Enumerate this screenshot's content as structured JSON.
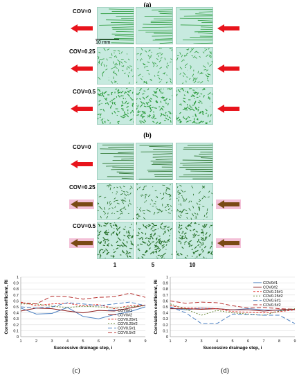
{
  "figure": {
    "panel_labels": [
      "(a)",
      "(b)",
      "(c)",
      "(d)"
    ],
    "cov_labels": [
      "COV=0",
      "COV=0.25",
      "COV=0.5"
    ],
    "step_labels": [
      "1",
      "5",
      "10"
    ],
    "scale_label": "10 mm",
    "colors": {
      "tile_bg": "#c7eadf",
      "finger": "#2a9a3a",
      "finger_dark": "#1e6a20",
      "arrow_red": "#e8141c",
      "arrow_brown": "#7a4a14",
      "arrow_glow": "#f3c1d8"
    },
    "arrows_b_brown": [
      false,
      true,
      true
    ]
  },
  "chart_data": [
    {
      "type": "line",
      "panel": "(c)",
      "ylabel": "Correlation coefficient, Ri",
      "xlabel": "Successive drainage step, i",
      "xlim": [
        1,
        9
      ],
      "ylim": [
        0,
        1
      ],
      "x": [
        1,
        2,
        3,
        4,
        5,
        6,
        7,
        8,
        9
      ],
      "x_ticks": [
        "1",
        "2",
        "3",
        "4",
        "5",
        "6",
        "7",
        "8",
        "9"
      ],
      "y_ticks": [
        "0",
        "0.1",
        "0.2",
        "0.3",
        "0.4",
        "0.5",
        "0.6",
        "0.7",
        "0.8",
        "0.9",
        "1"
      ],
      "legend_position": "bottom-right",
      "series": [
        {
          "name": "COV0#1",
          "color": "#4a7fc1",
          "dash": "",
          "values": [
            0.48,
            0.38,
            0.39,
            0.49,
            0.34,
            0.3,
            0.37,
            0.42,
            0.5
          ]
        },
        {
          "name": "COV0#2",
          "color": "#8b1a1a",
          "dash": "",
          "values": [
            0.43,
            0.48,
            0.47,
            0.43,
            0.4,
            0.44,
            0.43,
            0.48,
            0.53
          ]
        },
        {
          "name": "COV0.25#1",
          "color": "#e0302a",
          "dash": "3,2",
          "values": [
            0.58,
            0.52,
            0.55,
            0.56,
            0.52,
            0.54,
            0.47,
            0.52,
            0.53
          ]
        },
        {
          "name": "COV0.25#2",
          "color": "#6a8a3a",
          "dash": "2,2",
          "values": [
            0.55,
            0.55,
            0.51,
            0.49,
            0.51,
            0.5,
            0.48,
            0.5,
            0.52
          ]
        },
        {
          "name": "COV0.5#1",
          "color": "#4a7fc1",
          "dash": "6,3",
          "values": [
            0.5,
            0.48,
            0.5,
            0.57,
            0.55,
            0.52,
            0.55,
            0.58,
            0.52
          ]
        },
        {
          "name": "COV0.5#2",
          "color": "#b8312f",
          "dash": "6,3",
          "values": [
            0.57,
            0.55,
            0.68,
            0.67,
            0.63,
            0.66,
            0.67,
            0.73,
            0.66
          ]
        }
      ]
    },
    {
      "type": "line",
      "panel": "(d)",
      "ylabel": "Correlation coefficient, Ri",
      "xlabel": "Successive drainage step, i",
      "xlim": [
        1,
        9
      ],
      "ylim": [
        0,
        1
      ],
      "x": [
        1,
        2,
        3,
        4,
        5,
        6,
        7,
        8,
        9
      ],
      "x_ticks": [
        "1",
        "2",
        "3",
        "4",
        "5",
        "6",
        "7",
        "8",
        "9"
      ],
      "y_ticks": [
        "0",
        "0.1",
        "0.2",
        "0.3",
        "0.4",
        "0.5",
        "0.6",
        "0.7",
        "0.8",
        "0.9",
        "1"
      ],
      "legend_position": "top-right",
      "series": [
        {
          "name": "COV0#1",
          "color": "#4a7fc1",
          "dash": "",
          "values": [
            0.48,
            0.45,
            0.48,
            0.47,
            0.45,
            0.47,
            0.45,
            0.44,
            0.45
          ]
        },
        {
          "name": "COV0#2",
          "color": "#8b1a1a",
          "dash": "",
          "values": [
            0.47,
            0.47,
            0.46,
            0.47,
            0.45,
            0.45,
            0.43,
            0.45,
            0.46
          ]
        },
        {
          "name": "COV0.25#1",
          "color": "#e0302a",
          "dash": "3,2",
          "values": [
            0.52,
            0.48,
            0.48,
            0.47,
            0.42,
            0.41,
            0.4,
            0.42,
            0.45
          ]
        },
        {
          "name": "COV0.25#2",
          "color": "#6a8a3a",
          "dash": "2,2",
          "values": [
            0.55,
            0.46,
            0.36,
            0.44,
            0.4,
            0.38,
            0.36,
            0.43,
            0.47
          ]
        },
        {
          "name": "COV0.5#1",
          "color": "#4a7fc1",
          "dash": "6,3",
          "values": [
            0.5,
            0.4,
            0.22,
            0.22,
            0.38,
            0.37,
            0.36,
            0.36,
            0.22
          ]
        },
        {
          "name": "COV0.5#2",
          "color": "#b8312f",
          "dash": "6,3",
          "values": [
            0.6,
            0.56,
            0.58,
            0.57,
            0.52,
            0.48,
            0.49,
            0.47,
            0.46
          ]
        }
      ]
    }
  ]
}
